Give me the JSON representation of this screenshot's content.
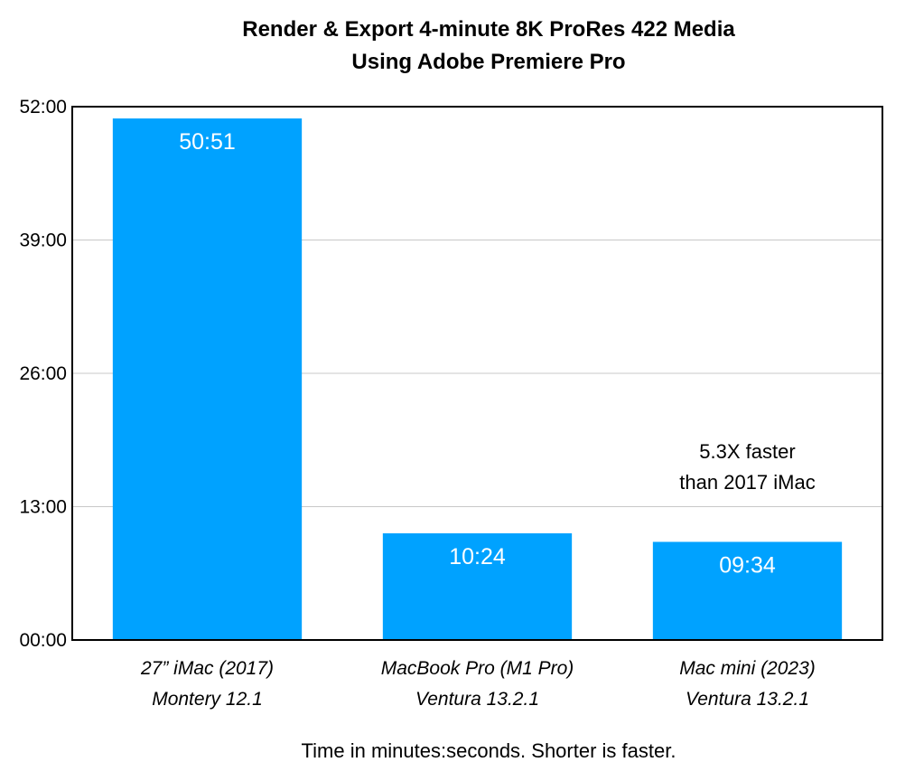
{
  "chart_data": {
    "type": "bar",
    "title": [
      "Render & Export 4-minute 8K ProRes 422 Media",
      "Using Adobe Premiere Pro"
    ],
    "categories": [
      [
        "27” iMac (2017)",
        "Montery 12.1"
      ],
      [
        "MacBook Pro (M1 Pro)",
        "Ventura 13.2.1"
      ],
      [
        "Mac mini (2023)",
        "Ventura 13.2.1"
      ]
    ],
    "values_seconds": [
      3051,
      624,
      574
    ],
    "data_labels": [
      "50:51",
      "10:24",
      "09:34"
    ],
    "yticks": [
      "00:00",
      "13:00",
      "26:00",
      "39:00",
      "52:00"
    ],
    "ytick_values_seconds": [
      0,
      780,
      1560,
      2340,
      3120
    ],
    "ylim_seconds": [
      0,
      3120
    ],
    "xlabel": "Time in minutes:seconds. Shorter is faster.",
    "ylabel": "",
    "grid": true,
    "legend": "none",
    "annotation": {
      "lines": [
        "5.3X faster",
        "than 2017 iMac"
      ],
      "category_index": 2
    },
    "colors": {
      "bar": "#00A2FF",
      "grid": "#C8C8C8",
      "frame": "#000000",
      "bar_label": "#FFFFFF"
    }
  }
}
